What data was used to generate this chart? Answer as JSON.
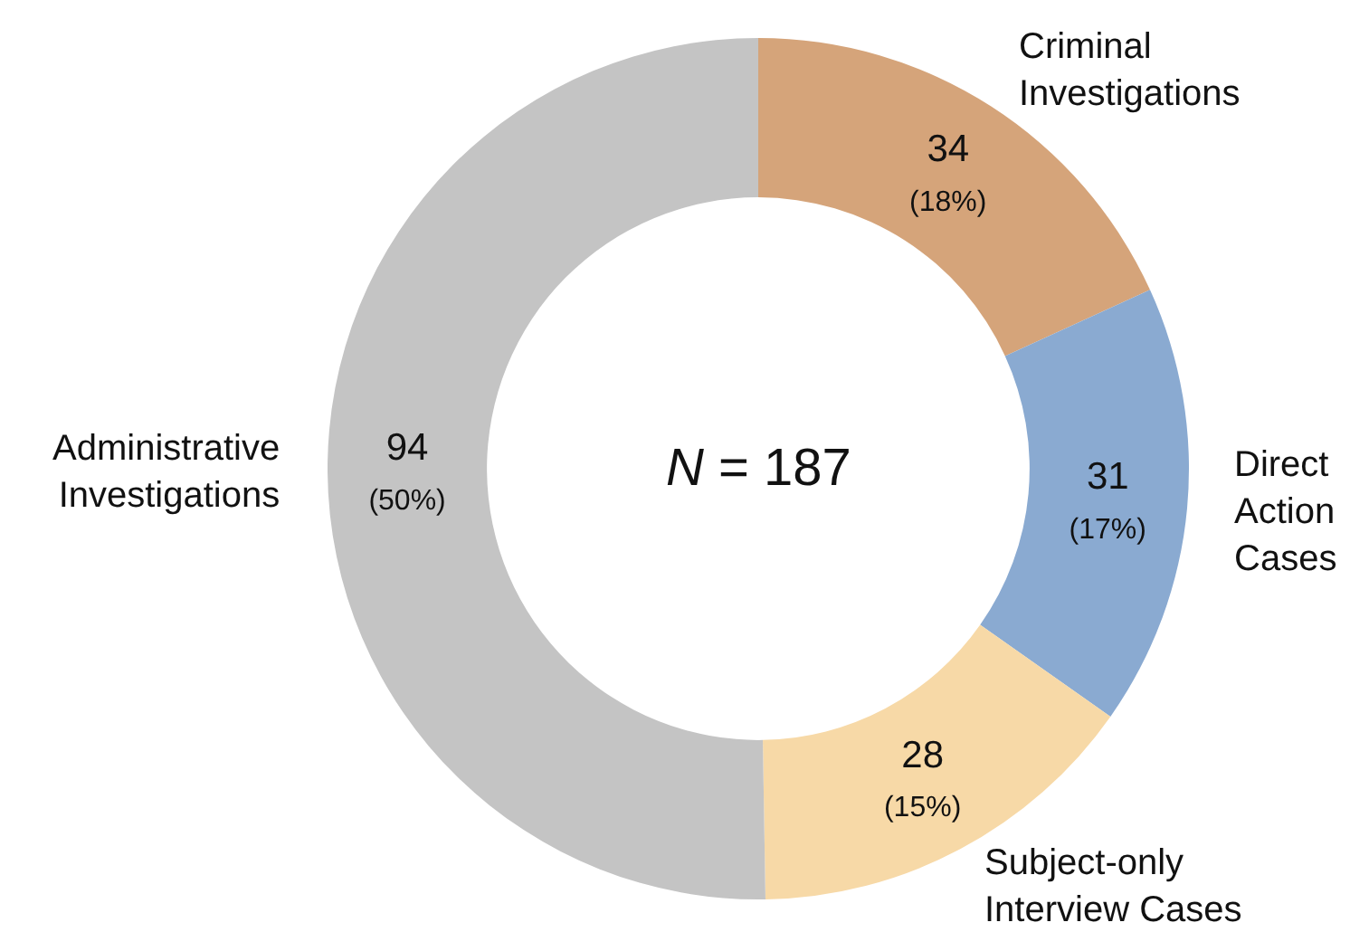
{
  "chart_data": {
    "type": "donut",
    "categories": [
      "Criminal Investigations",
      "Direct Action Cases",
      "Subject-only Interview Cases",
      "Administrative Investigations"
    ],
    "values": [
      34,
      31,
      28,
      94
    ],
    "colors": [
      "#d5a47a",
      "#8aaad1",
      "#f7d9a7",
      "#c4c4c4"
    ],
    "value_labels": [
      "34\n(18%)",
      "31\n(17%)",
      "28\n(15%)",
      "94\n(50%)"
    ],
    "annotations": [
      "N = 187"
    ]
  }
}
